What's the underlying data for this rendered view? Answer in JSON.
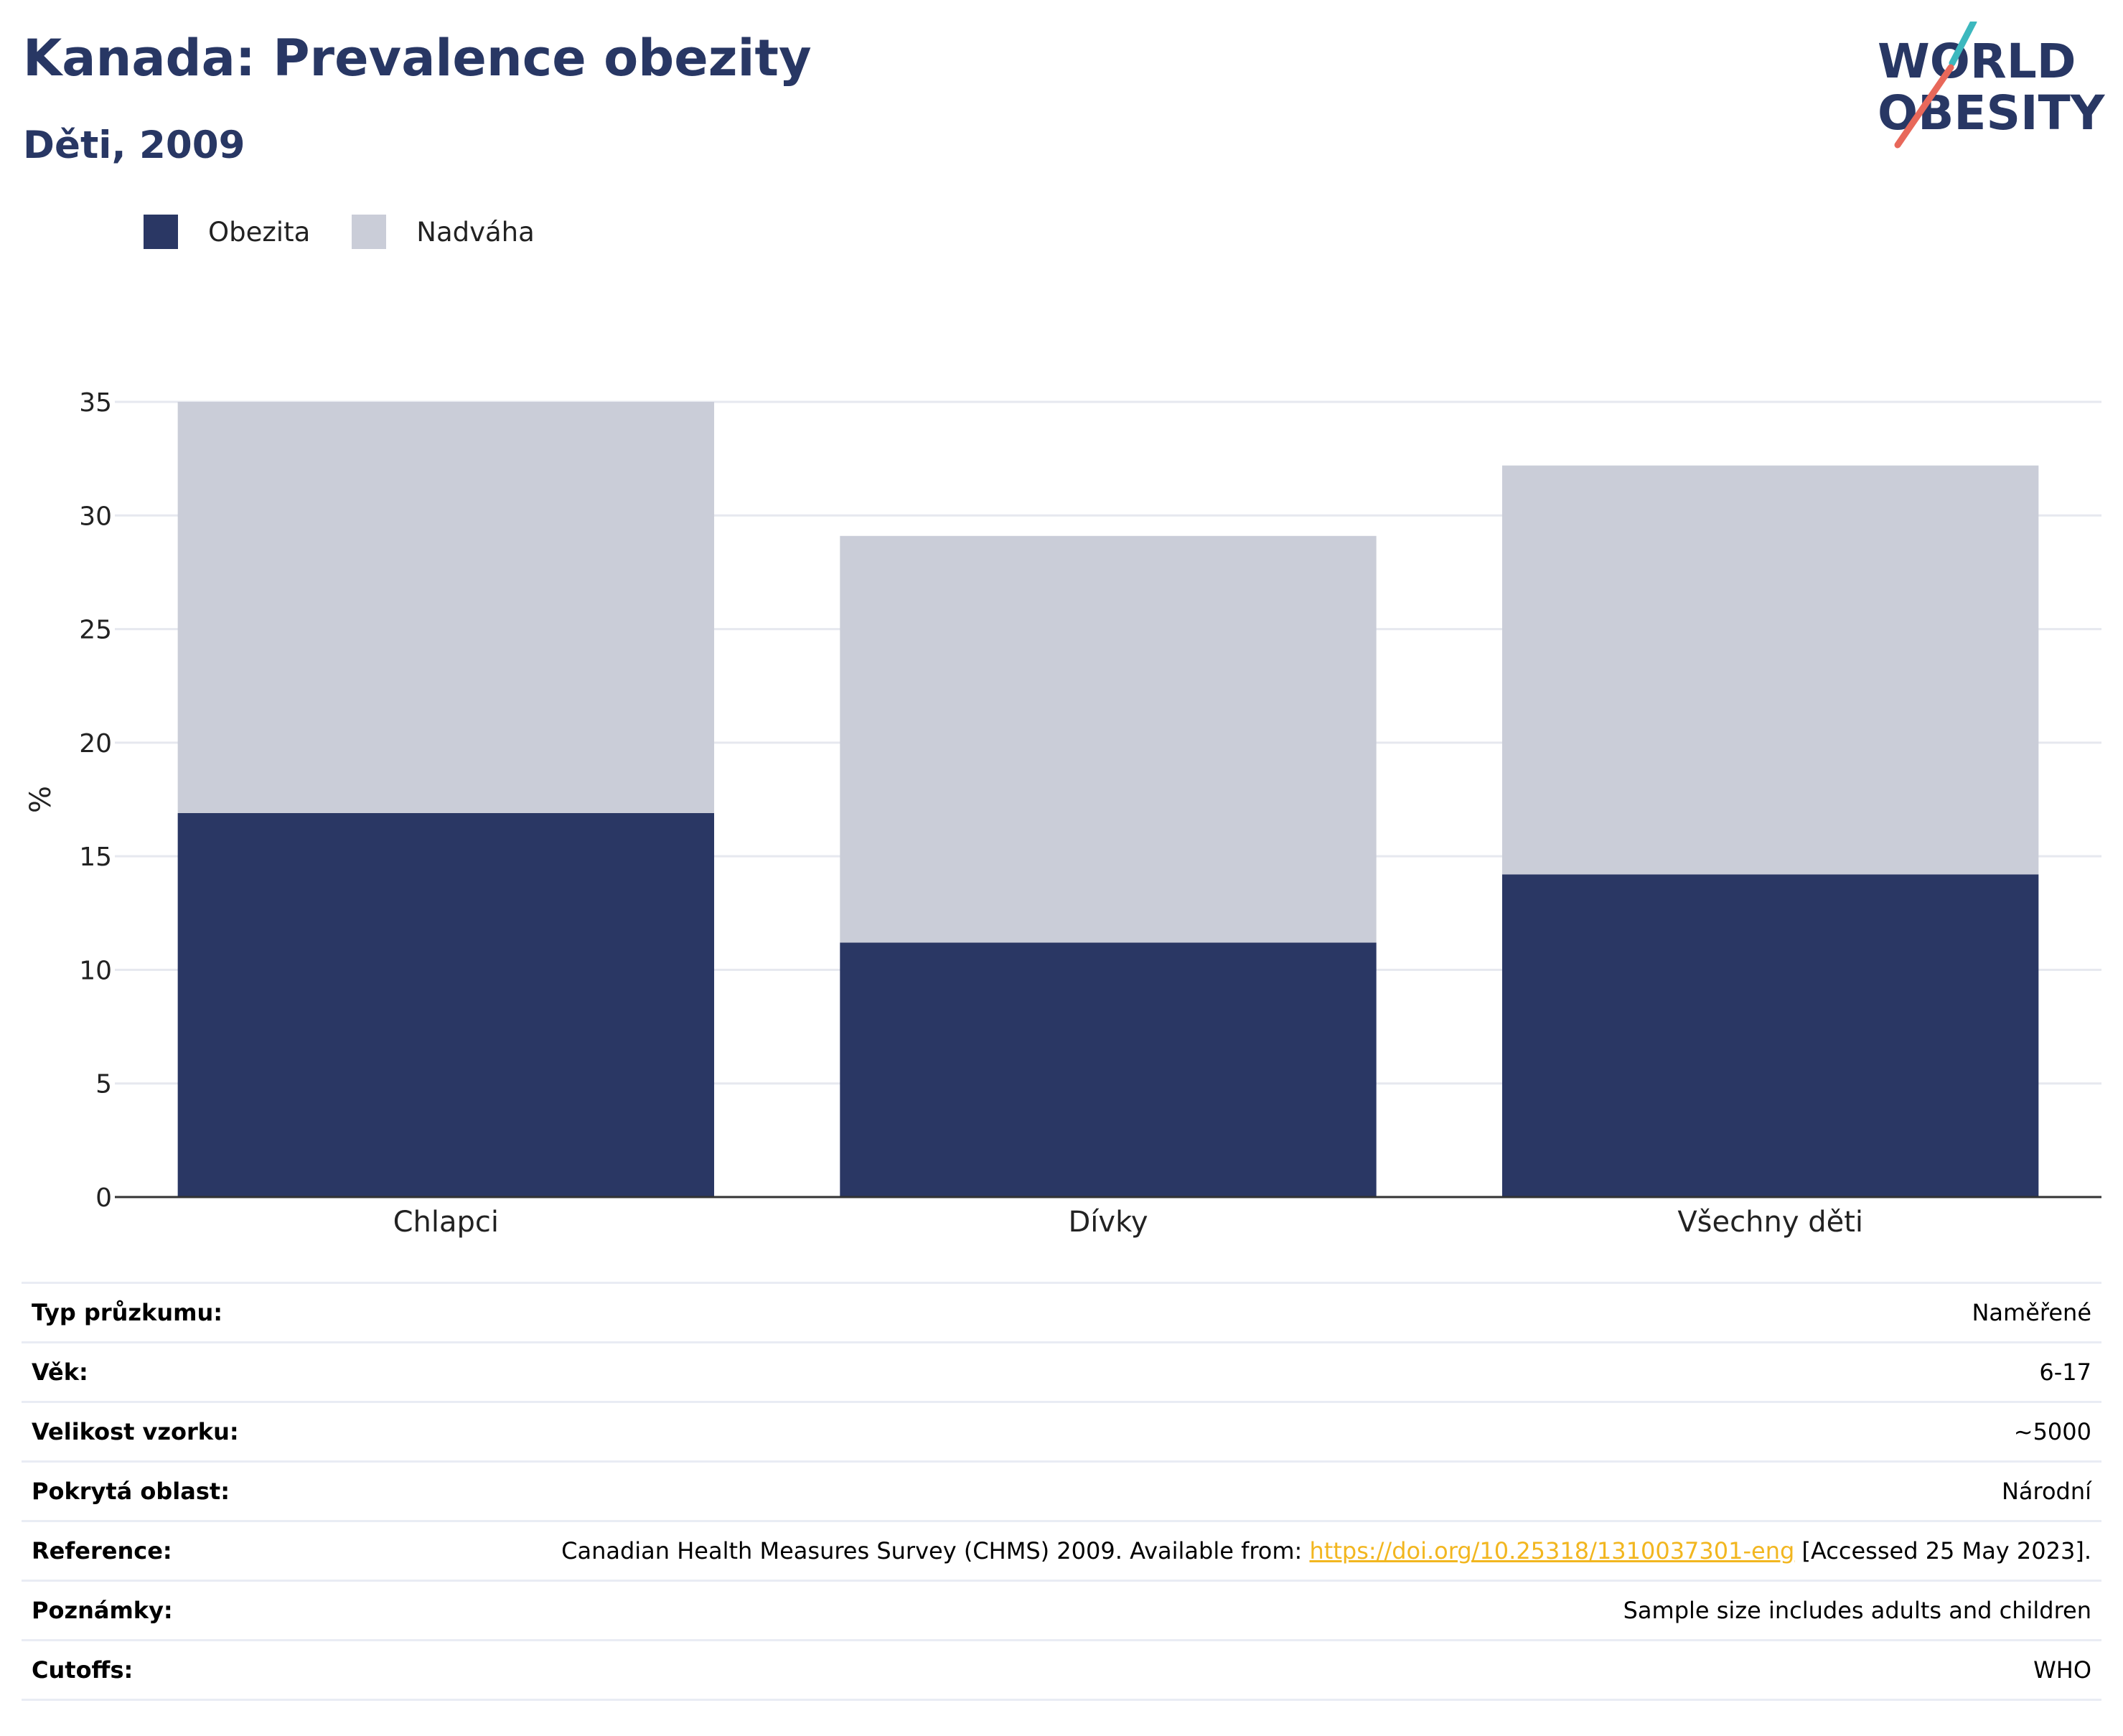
{
  "header": {
    "title": "Kanada: Prevalence obezity",
    "subtitle": "Děti, 2009",
    "logo_line1": "WORLD",
    "logo_line2": "OBESITY"
  },
  "legend": [
    {
      "label": "Obezita",
      "color": "#2a3764"
    },
    {
      "label": "Nadváha",
      "color": "#cacdd8"
    }
  ],
  "chart_data": {
    "type": "bar",
    "stacked": true,
    "categories": [
      "Chlapci",
      "Dívky",
      "Všechny děti"
    ],
    "series": [
      {
        "name": "Obezita",
        "values": [
          16.9,
          11.2,
          14.2
        ],
        "color": "#2a3764"
      },
      {
        "name": "Nadváha",
        "values": [
          18.1,
          17.9,
          18.0
        ],
        "color": "#cacdd8"
      }
    ],
    "ylabel": "%",
    "ylim": [
      0,
      35
    ],
    "yticks": [
      0,
      5,
      10,
      15,
      20,
      25,
      30,
      35
    ],
    "grid": true,
    "legend_position": "top-left"
  },
  "meta": {
    "survey_type": {
      "label": "Typ průzkumu:",
      "value": "Naměřené"
    },
    "age": {
      "label": "Věk:",
      "value": "6-17"
    },
    "sample_size": {
      "label": "Velikost vzorku:",
      "value": "~5000"
    },
    "coverage": {
      "label": "Pokrytá oblast:",
      "value": "Národní"
    },
    "reference": {
      "label": "Reference:",
      "prefix": "Canadian Health Measures Survey (CHMS) 2009. Available from: ",
      "link": "https://doi.org/10.25318/1310037301-eng",
      "suffix": " [Accessed 25 May 2023]."
    },
    "notes": {
      "label": "Poznámky:",
      "value": "Sample size includes adults and children"
    },
    "cutoffs": {
      "label": "Cutoffs:",
      "value": "WHO"
    }
  }
}
